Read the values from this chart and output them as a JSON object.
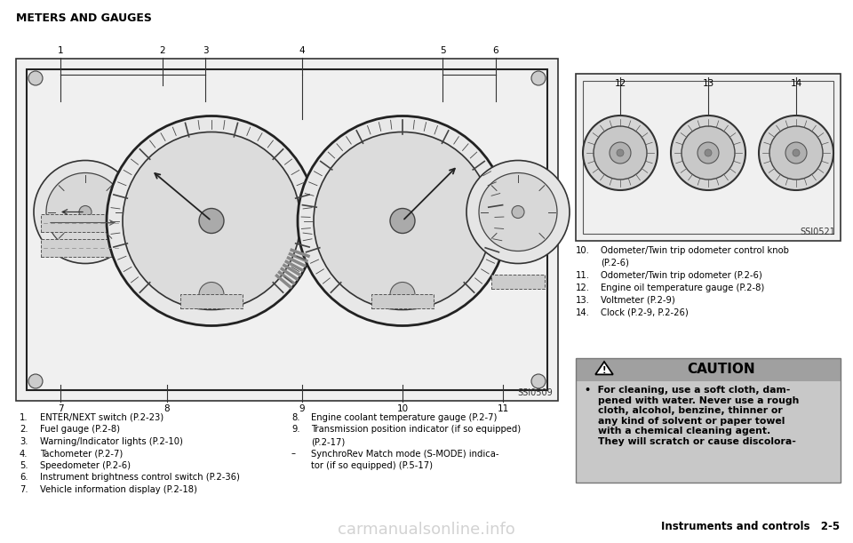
{
  "bg_color": "#ffffff",
  "title": "METERS AND GAUGES",
  "title_fontsize": 9,
  "main_diagram_label": "SSI0509",
  "right_diagram_label": "SSI0521",
  "left_items": [
    [
      "1.",
      "ENTER/NEXT switch (P.2-23)"
    ],
    [
      "2.",
      "Fuel gauge (P.2-8)"
    ],
    [
      "3.",
      "Warning/Indicator lights (P.2-10)"
    ],
    [
      "4.",
      "Tachometer (P.2-7)"
    ],
    [
      "5.",
      "Speedometer (P.2-6)"
    ],
    [
      "6.",
      "Instrument brightness control switch (P.2-36)"
    ],
    [
      "7.",
      "Vehicle information display (P.2-18)"
    ]
  ],
  "right_col_items": [
    [
      "8.",
      "Engine coolant temperature gauge (P.2-7)"
    ],
    [
      "9.",
      "Transmission position indicator (if so equipped)\n      (P.2-17)"
    ],
    [
      "–",
      " SynchroRev Match mode (S-MODE) indica-\n      tor (if so equipped) (P.5-17)"
    ]
  ],
  "items_10_14": [
    [
      "10.",
      "Odometer/Twin trip odometer control knob\n       (P.2-6)"
    ],
    [
      "11.",
      "Odometer/Twin trip odometer (P.2-6)"
    ],
    [
      "12.",
      "Engine oil temperature gauge (P.2-8)"
    ],
    [
      "13.",
      "Voltmeter (P.2-9)"
    ],
    [
      "14.",
      "Clock (P.2-9, P.2-26)"
    ]
  ],
  "caution_text": "•  For cleaning, use a soft cloth, dam-\n    pened with water. Never use a rough\n    cloth, alcohol, benzine, thinner or\n    any kind of solvent or paper towel\n    with a chemical cleaning agent.\n    They will scratch or cause discolora-",
  "footer_text": "Instruments and controls   2-5",
  "watermark": "carmanualsonline.info",
  "caution_bg": "#c8c8c8",
  "caution_header_bg": "#a0a0a0",
  "item_fontsize": 7.2,
  "caution_fontsize": 7.8
}
